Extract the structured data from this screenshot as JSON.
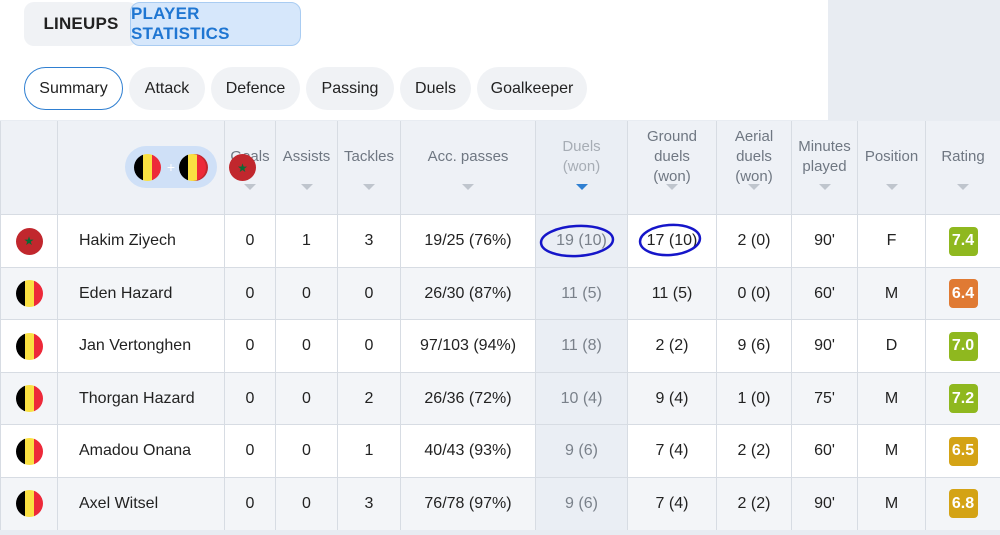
{
  "tabs": {
    "lineups": "LINEUPS",
    "player_statistics": "PLAYER STATISTICS"
  },
  "subtabs": [
    "Summary",
    "Attack",
    "Defence",
    "Passing",
    "Duels",
    "Goalkeeper"
  ],
  "filter": {
    "plus": "+"
  },
  "columns": {
    "goals": "Goals",
    "assists": "Assists",
    "tackles": "Tackles",
    "acc_passes": "Acc. passes",
    "duels": "Duels (won)",
    "ground_duels": "Ground duels (won)",
    "aerial_duels": "Aerial duels (won)",
    "minutes": "Minutes played",
    "position": "Position",
    "rating": "Rating"
  },
  "colors": {
    "accent": "#1f76d2",
    "rating_green": "#8fb81f",
    "rating_orange": "#e07a33",
    "rating_yellow": "#d4a315",
    "annotation": "#1515c9"
  },
  "players": [
    {
      "flag": "morocco-flag-icon",
      "name": "Hakim Ziyech",
      "goals": "0",
      "assists": "1",
      "tackles": "3",
      "acc_passes": "19/25 (76%)",
      "duels": "19 (10)",
      "ground_duels": "17 (10)",
      "aerial_duels": "2 (0)",
      "minutes": "90'",
      "position": "F",
      "rating": "7.4",
      "rating_color": "#8fb81f"
    },
    {
      "flag": "belgium-flag-icon",
      "name": "Eden Hazard",
      "goals": "0",
      "assists": "0",
      "tackles": "0",
      "acc_passes": "26/30 (87%)",
      "duels": "11 (5)",
      "ground_duels": "11 (5)",
      "aerial_duels": "0 (0)",
      "minutes": "60'",
      "position": "M",
      "rating": "6.4",
      "rating_color": "#e07a33"
    },
    {
      "flag": "belgium-flag-icon",
      "name": "Jan Vertonghen",
      "goals": "0",
      "assists": "0",
      "tackles": "0",
      "acc_passes": "97/103 (94%)",
      "duels": "11 (8)",
      "ground_duels": "2 (2)",
      "aerial_duels": "9 (6)",
      "minutes": "90'",
      "position": "D",
      "rating": "7.0",
      "rating_color": "#8fb81f"
    },
    {
      "flag": "belgium-flag-icon",
      "name": "Thorgan Hazard",
      "goals": "0",
      "assists": "0",
      "tackles": "2",
      "acc_passes": "26/36 (72%)",
      "duels": "10 (4)",
      "ground_duels": "9 (4)",
      "aerial_duels": "1 (0)",
      "minutes": "75'",
      "position": "M",
      "rating": "7.2",
      "rating_color": "#8fb81f"
    },
    {
      "flag": "belgium-flag-icon",
      "name": "Amadou Onana",
      "goals": "0",
      "assists": "0",
      "tackles": "1",
      "acc_passes": "40/43 (93%)",
      "duels": "9 (6)",
      "ground_duels": "7 (4)",
      "aerial_duels": "2 (2)",
      "minutes": "60'",
      "position": "M",
      "rating": "6.5",
      "rating_color": "#d4a315"
    },
    {
      "flag": "belgium-flag-icon",
      "name": "Axel Witsel",
      "goals": "0",
      "assists": "0",
      "tackles": "3",
      "acc_passes": "76/78 (97%)",
      "duels": "9 (6)",
      "ground_duels": "7 (4)",
      "aerial_duels": "2 (2)",
      "minutes": "90'",
      "position": "M",
      "rating": "6.8",
      "rating_color": "#d4a315"
    }
  ]
}
